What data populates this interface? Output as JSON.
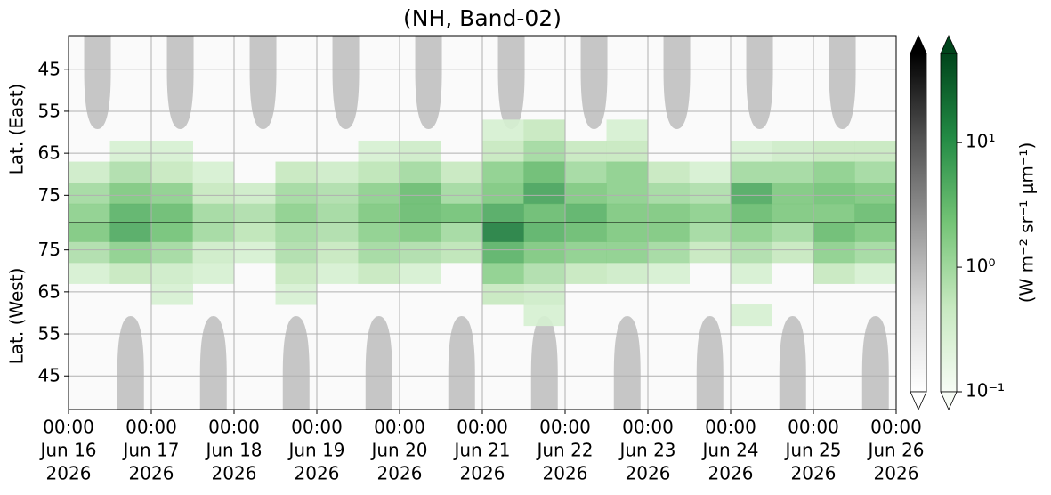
{
  "chart_data": {
    "type": "heatmap",
    "title": "(NH, Band-02)",
    "xlim": [
      0,
      10
    ],
    "xticks": [
      {
        "value": 0,
        "label": [
          "00:00",
          "Jun 16",
          "2026"
        ]
      },
      {
        "value": 1,
        "label": [
          "00:00",
          "Jun 17",
          "2026"
        ]
      },
      {
        "value": 2,
        "label": [
          "00:00",
          "Jun 18",
          "2026"
        ]
      },
      {
        "value": 3,
        "label": [
          "00:00",
          "Jun 19",
          "2026"
        ]
      },
      {
        "value": 4,
        "label": [
          "00:00",
          "Jun 20",
          "2026"
        ]
      },
      {
        "value": 5,
        "label": [
          "00:00",
          "Jun 21",
          "2026"
        ]
      },
      {
        "value": 6,
        "label": [
          "00:00",
          "Jun 22",
          "2026"
        ]
      },
      {
        "value": 7,
        "label": [
          "00:00",
          "Jun 23",
          "2026"
        ]
      },
      {
        "value": 8,
        "label": [
          "00:00",
          "Jun 24",
          "2026"
        ]
      },
      {
        "value": 9,
        "label": [
          "00:00",
          "Jun 25",
          "2026"
        ]
      },
      {
        "value": 10,
        "label": [
          "00:00",
          "Jun 26",
          "2026"
        ]
      }
    ],
    "grid": true,
    "time_bins": [
      0,
      0.5,
      1,
      1.5,
      2,
      2.5,
      3,
      3.5,
      4,
      4.5,
      5,
      5.5,
      6,
      6.5,
      7,
      7.5,
      8,
      8.5,
      9,
      9.5,
      10
    ],
    "panels": [
      {
        "ylabel": "Lat. (East)",
        "ylim": [
          81.5,
          37
        ],
        "yticks": [
          45,
          55,
          65,
          75
        ],
        "lat_bins": [
          57,
          62,
          67,
          72,
          77,
          81.5
        ],
        "values": [
          [
            null,
            null,
            null,
            null,
            null,
            null,
            null,
            null,
            null,
            null,
            0.3,
            0.5,
            null,
            0.3,
            null,
            null,
            null,
            null,
            null,
            null
          ],
          [
            null,
            0.3,
            0.3,
            null,
            null,
            null,
            null,
            0.3,
            0.4,
            null,
            0.5,
            1,
            0.5,
            0.5,
            null,
            null,
            0.3,
            0.4,
            0.5,
            0.5
          ],
          [
            0.4,
            0.8,
            0.5,
            0.3,
            null,
            0.5,
            0.4,
            0.6,
            1,
            0.5,
            1.5,
            3,
            1,
            1.5,
            0.5,
            0.3,
            1,
            1,
            1.5,
            1
          ],
          [
            1,
            2,
            1.5,
            0.5,
            0.4,
            1,
            0.8,
            1.5,
            3,
            1,
            2,
            6,
            2,
            1.5,
            1,
            0.8,
            5,
            2,
            2.5,
            2
          ],
          [
            1.5,
            4,
            3,
            1,
            0.8,
            1.5,
            1,
            2,
            3,
            2.5,
            5,
            3,
            4,
            2,
            2,
            1.5,
            3,
            2,
            2,
            3
          ]
        ]
      },
      {
        "ylabel": "Lat. (West)",
        "ylim": [
          37,
          81.5
        ],
        "yticks": [
          45,
          55,
          65,
          75
        ],
        "lat_bins": [
          57,
          62,
          67,
          72,
          77,
          81.5
        ],
        "values": [
          [
            null,
            null,
            null,
            null,
            null,
            null,
            null,
            null,
            null,
            null,
            null,
            0.3,
            null,
            null,
            null,
            null,
            0.3,
            null,
            null,
            null
          ],
          [
            null,
            null,
            0.3,
            null,
            null,
            0.3,
            null,
            null,
            null,
            null,
            0.5,
            0.4,
            null,
            null,
            null,
            null,
            null,
            null,
            null,
            null
          ],
          [
            0.3,
            0.5,
            0.4,
            0.3,
            null,
            0.5,
            0.3,
            0.5,
            0.3,
            null,
            1.5,
            0.8,
            0.5,
            0.4,
            0.3,
            null,
            0.3,
            null,
            0.5,
            0.3
          ],
          [
            0.8,
            1.5,
            1,
            0.4,
            0.3,
            0.8,
            0.5,
            1,
            0.8,
            0.6,
            4,
            2,
            1.5,
            1.5,
            1,
            0.5,
            0.8,
            0.5,
            1.5,
            1
          ],
          [
            2,
            5,
            2.5,
            1,
            0.6,
            1,
            0.8,
            1.5,
            2,
            1,
            15,
            4,
            3,
            2,
            2,
            1,
            1.5,
            1,
            3,
            2
          ]
        ]
      }
    ],
    "log_scale": true,
    "colorbars": [
      {
        "colormap": [
          "#ffffff",
          "#d9d9d9",
          "#969696",
          "#525252",
          "#000000"
        ],
        "clim": [
          0.1,
          52
        ],
        "extend": "both"
      },
      {
        "colormap": [
          "#f7fcf5",
          "#c7e9c0",
          "#74c476",
          "#238b45",
          "#00441b"
        ],
        "clim": [
          0.1,
          52
        ],
        "extend": "both",
        "ticks": [
          {
            "value": 0.1,
            "label": "10⁻¹"
          },
          {
            "value": 1,
            "label": "10⁰"
          },
          {
            "value": 10,
            "label": "10¹"
          }
        ],
        "label": "(W m⁻² sr⁻¹ μm⁻¹)"
      }
    ]
  }
}
